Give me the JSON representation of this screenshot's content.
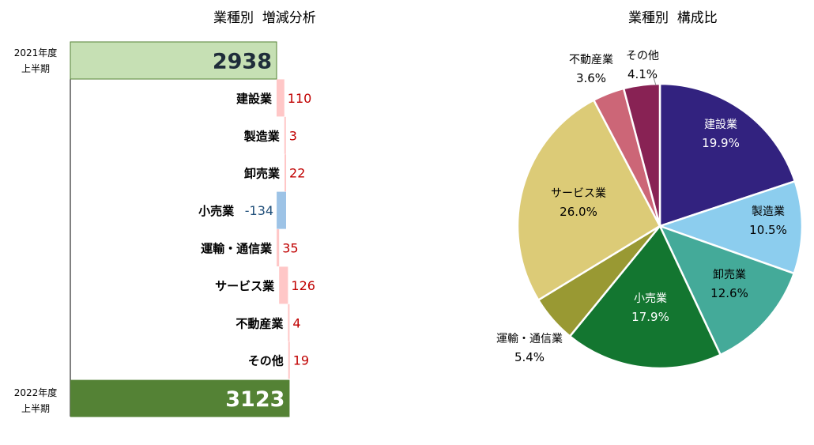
{
  "waterfall": {
    "title": "業種別  増減分析",
    "start": {
      "period_line1": "2021年度",
      "period_line2": "上半期",
      "value": 2938,
      "label": "2938",
      "color": "#c6e0b4"
    },
    "end": {
      "period_line1": "2022年度",
      "period_line2": "上半期",
      "value": 3123,
      "label": "3123",
      "color": "#548235"
    },
    "colors": {
      "positive": "#ffc7c7",
      "negative": "#9dc3e6",
      "positive_text": "#c00000",
      "negative_text": "#1f4e79"
    }
  },
  "pie": {
    "title": "業種別  構成比"
  },
  "chart_data": [
    {
      "type": "bar",
      "subtype": "waterfall",
      "title": "業種別  増減分析",
      "categories": [
        "建設業",
        "製造業",
        "卸売業",
        "小売業",
        "運輸・通信業",
        "サービス業",
        "不動産業",
        "その他"
      ],
      "values": [
        110,
        3,
        22,
        -134,
        35,
        126,
        4,
        19
      ],
      "value_labels": [
        "110",
        "3",
        "22",
        "-134",
        "35",
        "126",
        "4",
        "19"
      ],
      "start": {
        "label": "2021年度 上半期",
        "value": 2938
      },
      "end": {
        "label": "2022年度 上半期",
        "value": 3123
      }
    },
    {
      "type": "pie",
      "title": "業種別  構成比",
      "labels": [
        "建設業",
        "製造業",
        "卸売業",
        "小売業",
        "運輸・通信業",
        "サービス業",
        "不動産業",
        "その他"
      ],
      "values": [
        19.9,
        10.5,
        12.6,
        17.9,
        5.4,
        26.0,
        3.6,
        4.1
      ],
      "value_labels": [
        "19.9%",
        "10.5%",
        "12.6%",
        "17.9%",
        "5.4%",
        "26.0%",
        "3.6%",
        "4.1%"
      ],
      "colors": [
        "#32227f",
        "#8ccdee",
        "#44aa99",
        "#137630",
        "#999933",
        "#dccb77",
        "#cc6677",
        "#882254"
      ]
    }
  ]
}
